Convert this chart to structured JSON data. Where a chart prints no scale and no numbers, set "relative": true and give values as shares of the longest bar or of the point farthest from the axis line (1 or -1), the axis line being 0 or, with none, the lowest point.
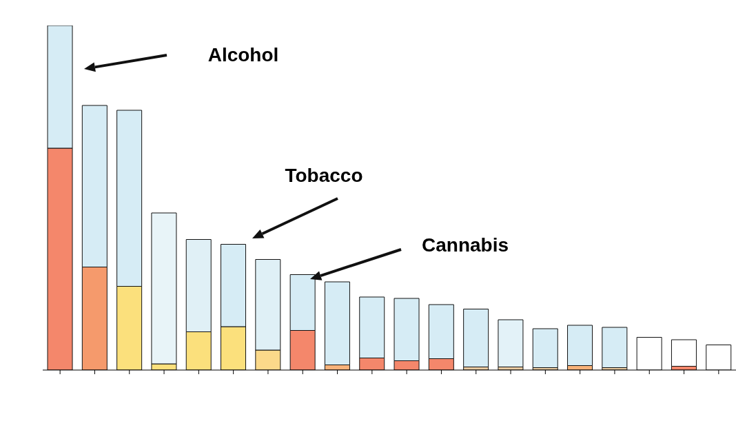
{
  "chart_data": {
    "type": "bar",
    "stacked": true,
    "relative": true,
    "categories": [
      null,
      null,
      null,
      null,
      null,
      null,
      null,
      null,
      null,
      null,
      null,
      null,
      null,
      null,
      null,
      null,
      null,
      null,
      null,
      null
    ],
    "series": [
      {
        "colors": [
          "#f4876b",
          "#f59a6c",
          "#fbe07c",
          "#fbe07c",
          "#fbe07c",
          "#fbe07c",
          "#fbd98a",
          "#f4876b",
          "#f7b27a",
          "#f4876b",
          "#f4876b",
          "#f4876b",
          "#e8c9a0",
          "#e8c9a0",
          "#e8c9a0",
          "#f7b27a",
          "#e8c9a0",
          "#f4876b",
          "#f4876b",
          "#f4876b"
        ],
        "values": [
          0.644,
          0.299,
          0.243,
          0.018,
          0.111,
          0.126,
          0.058,
          0.115,
          0.015,
          0.035,
          0.027,
          0.033,
          0.009,
          0.009,
          0.007,
          0.013,
          0.007,
          0,
          0.011,
          0
        ]
      },
      {
        "colors": [
          "#d6ecf5",
          "#d6ecf5",
          "#d6ecf5",
          "#e8f4f8",
          "#e0f0f6",
          "#d6ecf5",
          "#dff0f6",
          "#d6ecf5",
          "#d6ecf5",
          "#d6ecf5",
          "#d6ecf5",
          "#d6ecf5",
          "#d6ecf5",
          "#e3f2f8",
          "#d6ecf5",
          "#d6ecf5",
          "#d6ecf5",
          "#ffffff",
          "#ffffff",
          "#ffffff"
        ],
        "values": [
          0.356,
          0.469,
          0.511,
          0.438,
          0.268,
          0.239,
          0.263,
          0.162,
          0.241,
          0.177,
          0.181,
          0.157,
          0.168,
          0.137,
          0.113,
          0.117,
          0.117,
          0.095,
          0.077,
          0.073
        ]
      }
    ],
    "annotations": [
      "Alcohol",
      "Tobacco",
      "Cannabis"
    ]
  }
}
